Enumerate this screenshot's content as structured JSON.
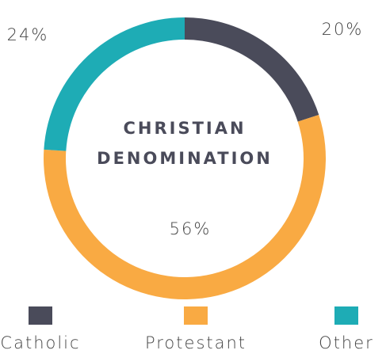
{
  "chart_data": {
    "type": "donut",
    "title": [
      "CHRISTIAN",
      "DENOMINATION"
    ],
    "categories": [
      "Catholic",
      "Protestant",
      "Other"
    ],
    "values": [
      20,
      56,
      24
    ],
    "value_labels": [
      "20%",
      "56%",
      "24%"
    ],
    "colors": [
      "#4a4b5a",
      "#f9aa43",
      "#1eacb5"
    ]
  }
}
